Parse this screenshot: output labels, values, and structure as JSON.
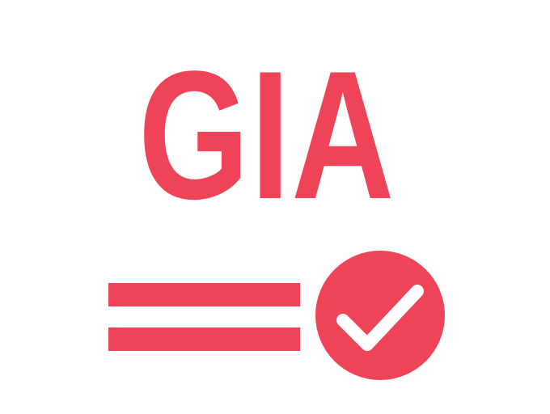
{
  "logo": {
    "text": "GIA",
    "color": "#ef4358"
  },
  "icons": {
    "lines": "double-line-icon",
    "check": "check-circle-icon"
  },
  "colors": {
    "accent": "#ef4358",
    "background": "#ffffff",
    "check_mark": "#ffffff"
  }
}
